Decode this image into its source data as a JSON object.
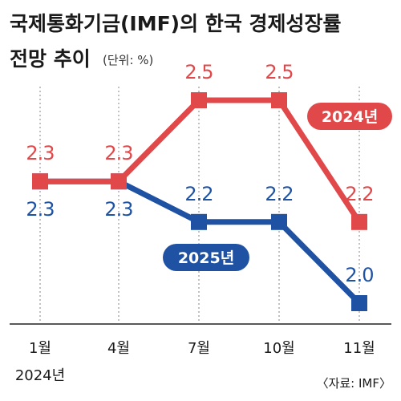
{
  "title_line1": "국제통화기금(IMF)의 한국 경제성장률",
  "title_line2": "전망 추이",
  "unit_note": "(단위: %)",
  "source": "〈자료: IMF〉",
  "colors": {
    "2024": "#e0484a",
    "2025": "#1f52a3"
  },
  "chart_data": {
    "type": "line",
    "title": "국제통화기금(IMF)의 한국 경제성장률 전망 추이",
    "categories": [
      "1월",
      "4월",
      "7월",
      "10월",
      "11월"
    ],
    "category_note": "2024년",
    "ylim": [
      1.8,
      2.7
    ],
    "series": [
      {
        "name": "2024년",
        "values": [
          2.3,
          2.3,
          2.5,
          2.5,
          2.2
        ],
        "labels": [
          "2.3",
          "2.3",
          "2.5",
          "2.5",
          "2.2"
        ]
      },
      {
        "name": "2025년",
        "values": [
          2.3,
          2.3,
          2.2,
          2.2,
          2.0
        ],
        "labels": [
          "2.3",
          "2.3",
          "2.2",
          "2.2",
          "2.0"
        ]
      }
    ]
  }
}
